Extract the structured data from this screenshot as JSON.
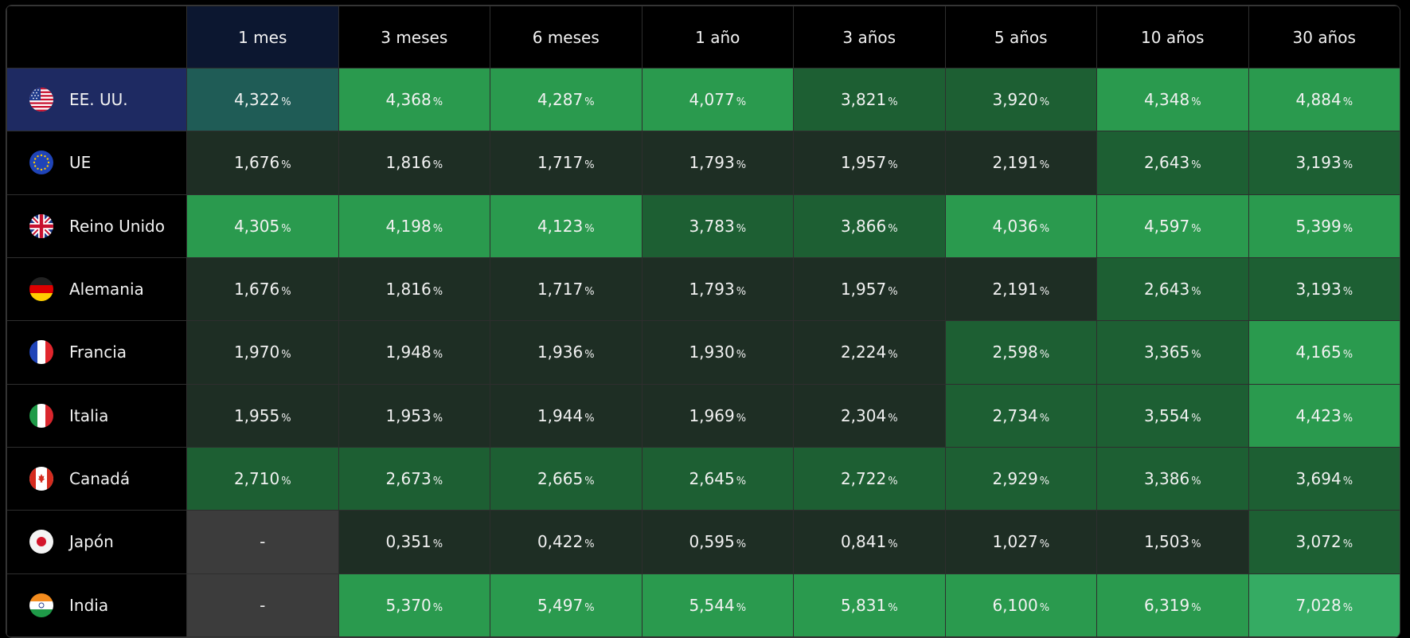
{
  "columns": [
    "1 mes",
    "3 meses",
    "6 meses",
    "1 año",
    "3 años",
    "5 años",
    "10 años",
    "30 años"
  ],
  "percent_sign": "%",
  "heat_colors": {
    "low": "#1e2e24",
    "mid": "#1d5f33",
    "high": "#2a9a4e",
    "highest": "#35ab63",
    "missing": "#3c3c3c",
    "selected": "#1f5c56"
  },
  "selected_row_color": "#1e2a62",
  "rows": [
    {
      "country": "EE. UU.",
      "flag": "us-flag-icon",
      "values": [
        "4,322",
        "4,368",
        "4,287",
        "4,077",
        "3,821",
        "3,920",
        "4,348",
        "4,884"
      ],
      "levels": [
        5,
        2,
        2,
        2,
        1,
        1,
        2,
        2
      ]
    },
    {
      "country": "UE",
      "flag": "eu-flag-icon",
      "values": [
        "1,676",
        "1,816",
        "1,717",
        "1,793",
        "1,957",
        "2,191",
        "2,643",
        "3,193"
      ],
      "levels": [
        0,
        0,
        0,
        0,
        0,
        0,
        1,
        1
      ]
    },
    {
      "country": "Reino Unido",
      "flag": "uk-flag-icon",
      "values": [
        "4,305",
        "4,198",
        "4,123",
        "3,783",
        "3,866",
        "4,036",
        "4,597",
        "5,399"
      ],
      "levels": [
        2,
        2,
        2,
        1,
        1,
        2,
        2,
        2
      ]
    },
    {
      "country": "Alemania",
      "flag": "germany-flag-icon",
      "values": [
        "1,676",
        "1,816",
        "1,717",
        "1,793",
        "1,957",
        "2,191",
        "2,643",
        "3,193"
      ],
      "levels": [
        0,
        0,
        0,
        0,
        0,
        0,
        1,
        1
      ]
    },
    {
      "country": "Francia",
      "flag": "france-flag-icon",
      "values": [
        "1,970",
        "1,948",
        "1,936",
        "1,930",
        "2,224",
        "2,598",
        "3,365",
        "4,165"
      ],
      "levels": [
        0,
        0,
        0,
        0,
        0,
        1,
        1,
        2
      ]
    },
    {
      "country": "Italia",
      "flag": "italy-flag-icon",
      "values": [
        "1,955",
        "1,953",
        "1,944",
        "1,969",
        "2,304",
        "2,734",
        "3,554",
        "4,423"
      ],
      "levels": [
        0,
        0,
        0,
        0,
        0,
        1,
        1,
        2
      ]
    },
    {
      "country": "Canadá",
      "flag": "canada-flag-icon",
      "values": [
        "2,710",
        "2,673",
        "2,665",
        "2,645",
        "2,722",
        "2,929",
        "3,386",
        "3,694"
      ],
      "levels": [
        1,
        1,
        1,
        1,
        1,
        1,
        1,
        1
      ]
    },
    {
      "country": "Japón",
      "flag": "japan-flag-icon",
      "values": [
        "-",
        "0,351",
        "0,422",
        "0,595",
        "0,841",
        "1,027",
        "1,503",
        "3,072"
      ],
      "levels": [
        4,
        0,
        0,
        0,
        0,
        0,
        0,
        1
      ]
    },
    {
      "country": "India",
      "flag": "india-flag-icon",
      "values": [
        "-",
        "5,370",
        "5,497",
        "5,544",
        "5,831",
        "6,100",
        "6,319",
        "7,028"
      ],
      "levels": [
        4,
        2,
        2,
        2,
        2,
        2,
        2,
        3
      ]
    }
  ]
}
